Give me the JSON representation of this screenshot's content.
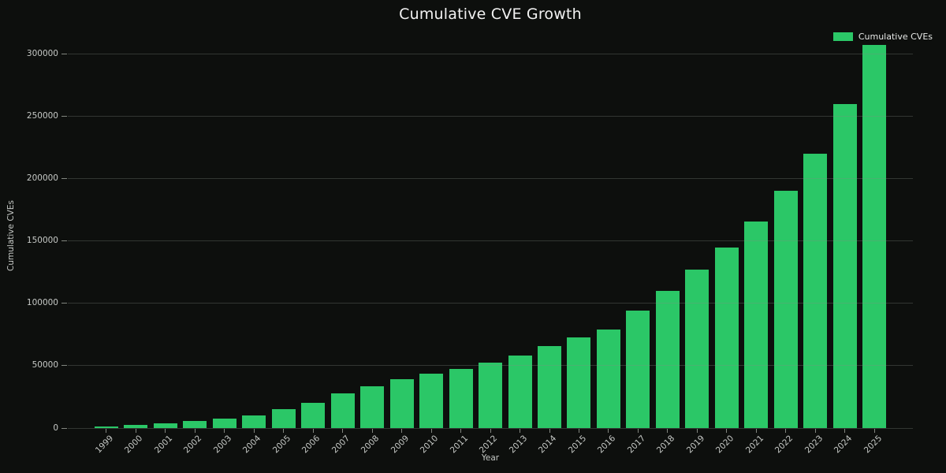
{
  "figure": {
    "background": "#0d0f0d",
    "text_color": "#c6c9c6",
    "title_color": "#f2f2f2"
  },
  "chart_data": {
    "type": "bar",
    "title": "Cumulative CVE Growth",
    "xlabel": "Year",
    "ylabel": "Cumulative CVEs",
    "legend": {
      "label": "Cumulative CVEs",
      "position": "upper right"
    },
    "bar_color": "#2bc767",
    "grid": true,
    "grid_color": "rgba(132,136,132,0.32)",
    "categories": [
      "1999",
      "2000",
      "2001",
      "2002",
      "2003",
      "2004",
      "2005",
      "2006",
      "2007",
      "2008",
      "2009",
      "2010",
      "2011",
      "2012",
      "2013",
      "2014",
      "2015",
      "2016",
      "2017",
      "2018",
      "2019",
      "2020",
      "2021",
      "2022",
      "2023",
      "2024",
      "2025"
    ],
    "values": [
      1500,
      2500,
      4000,
      6000,
      7500,
      10000,
      15000,
      20500,
      28000,
      33500,
      39000,
      43500,
      47500,
      52500,
      58000,
      66000,
      72500,
      79000,
      94000,
      110000,
      127000,
      145000,
      165500,
      190500,
      220000,
      260000,
      307000
    ],
    "yticks": [
      0,
      50000,
      100000,
      150000,
      200000,
      250000,
      300000
    ],
    "ylim": [
      0,
      318000
    ]
  }
}
